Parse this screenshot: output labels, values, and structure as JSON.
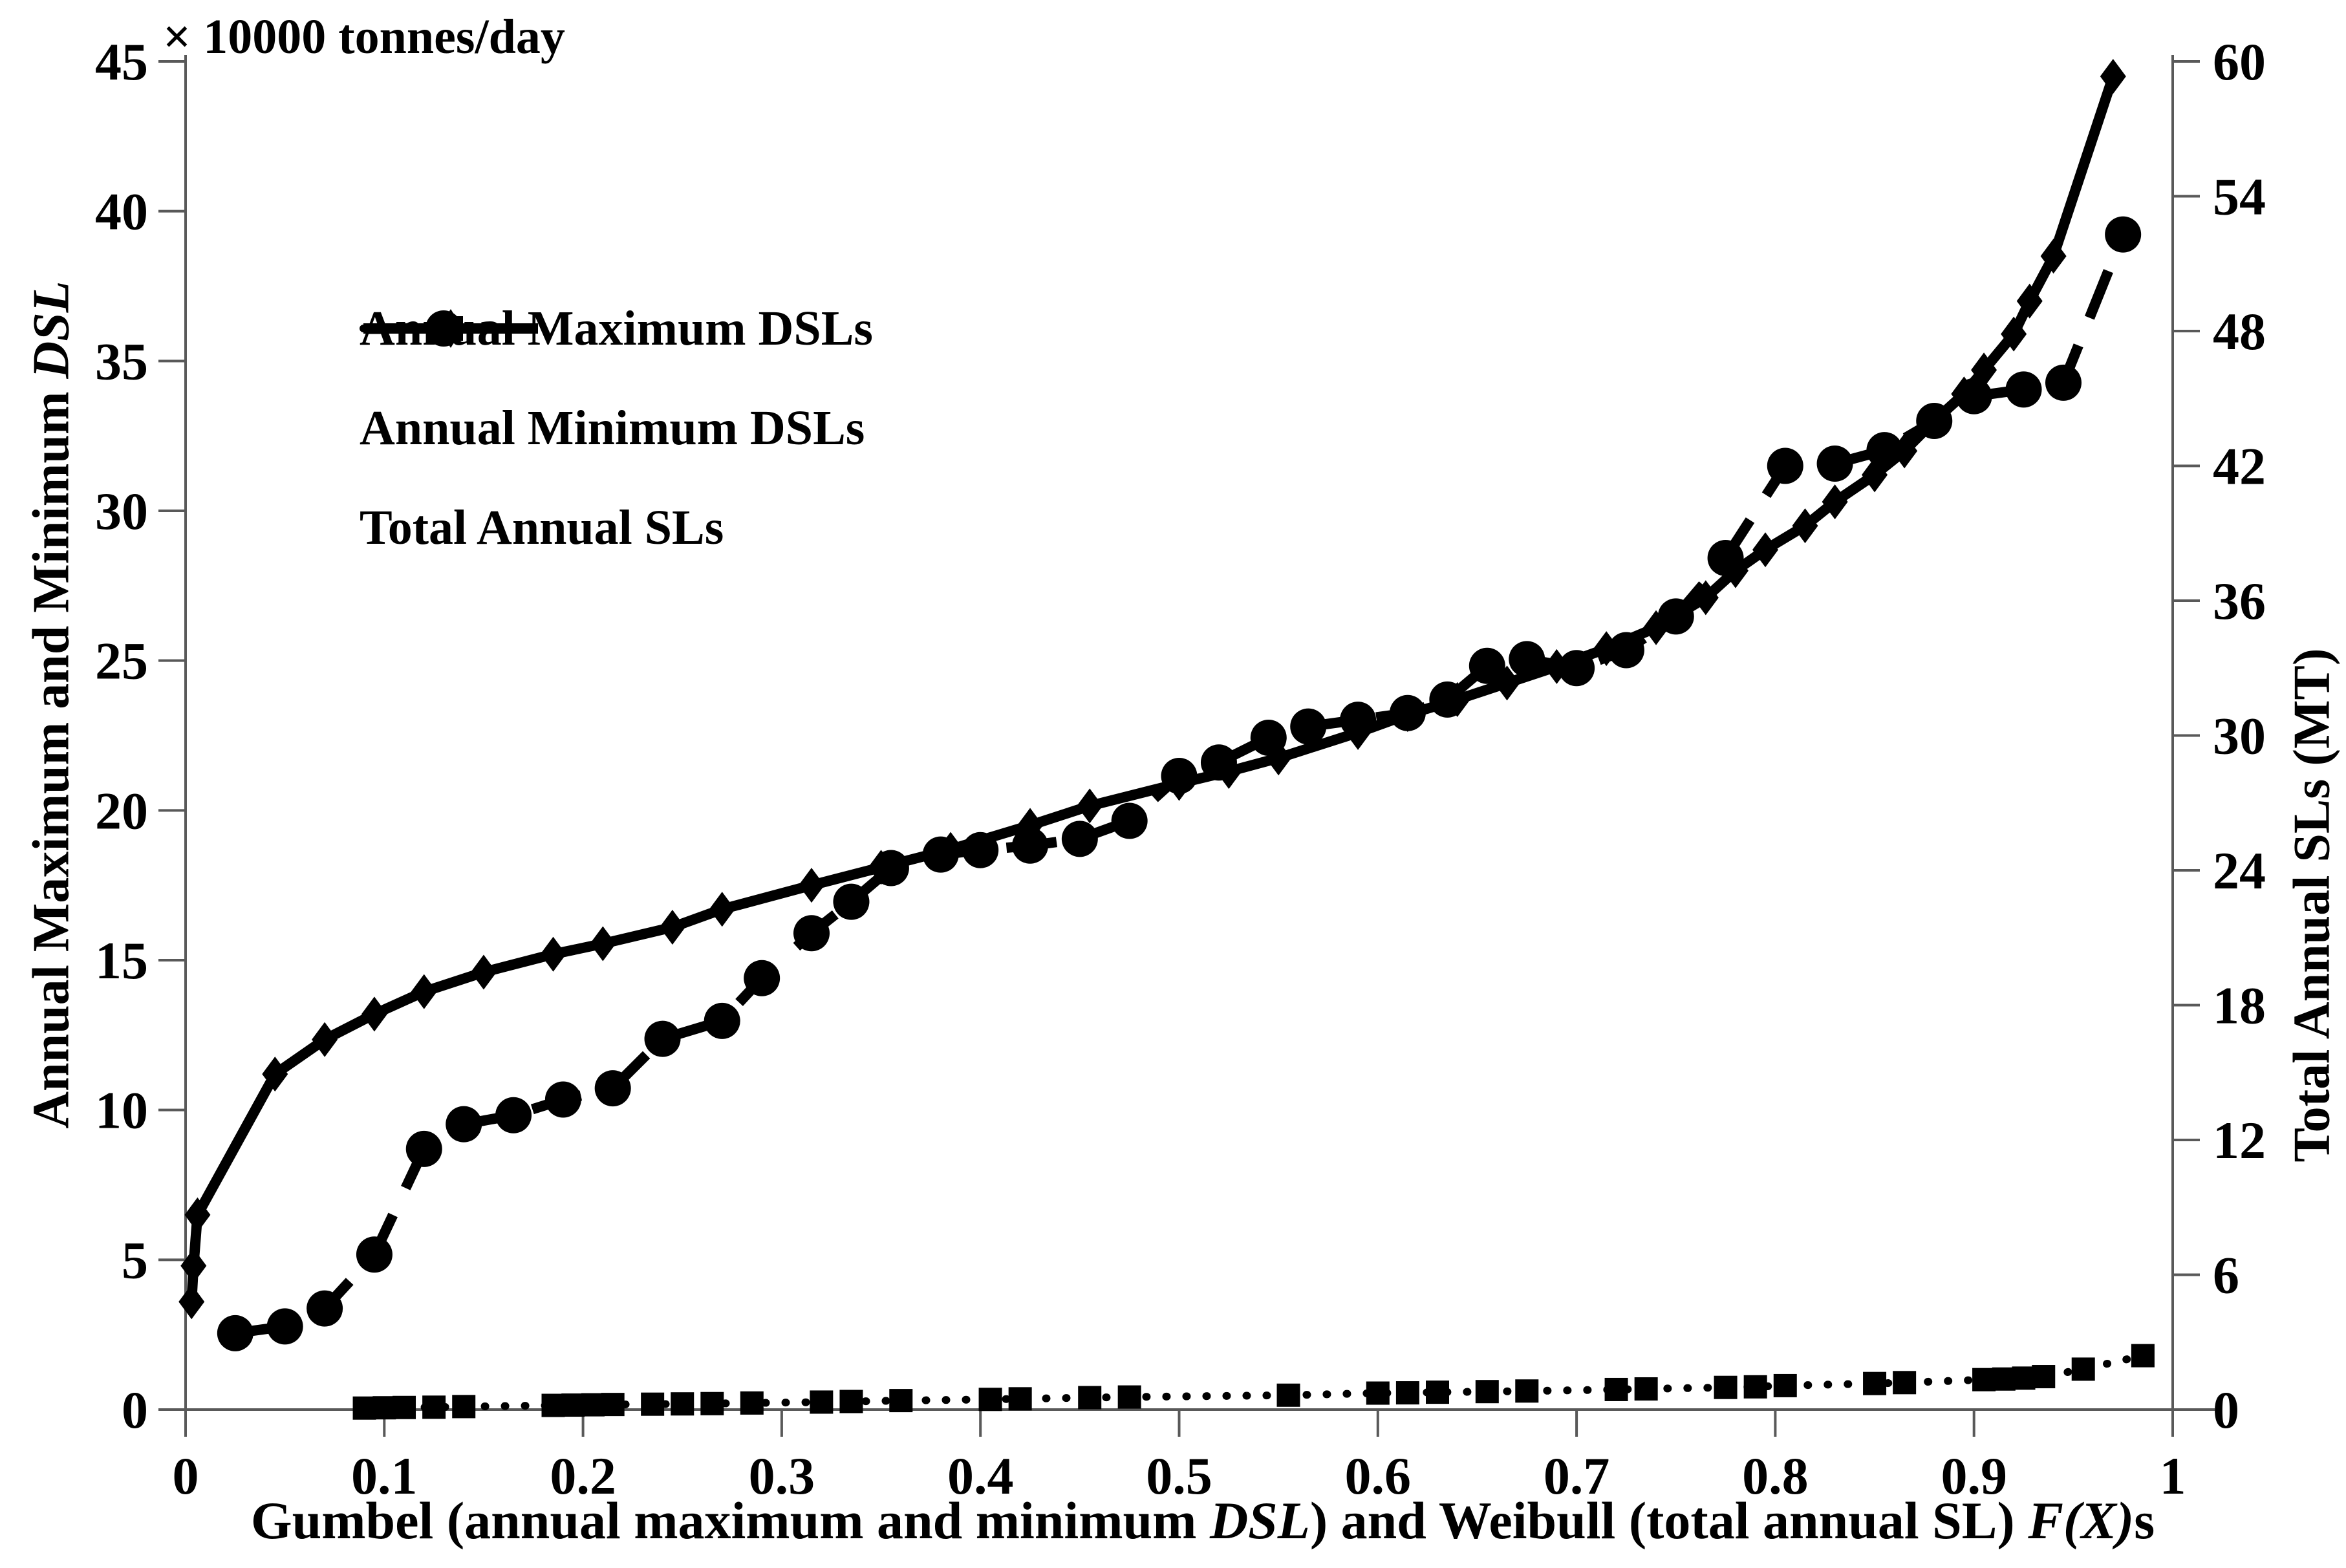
{
  "chart_data": {
    "type": "line",
    "title": "",
    "top_unit_label": "× 10000  tonnes/day",
    "x_axis": {
      "title_parts": [
        {
          "text": "Gumbel (annual maximum and minimum "
        },
        {
          "text": "DSL",
          "italic": true
        },
        {
          "text": ") and Weibull (total annual SL) "
        },
        {
          "text": "F(X)",
          "italic": true
        },
        {
          "text": "s"
        }
      ],
      "min": 0,
      "max": 1,
      "ticks": [
        0,
        0.1,
        0.2,
        0.3,
        0.4,
        0.5,
        0.6,
        0.7,
        0.8,
        0.9,
        1
      ],
      "tick_labels": [
        "0",
        "0.1",
        "0.2",
        "0.3",
        "0.4",
        "0.5",
        "0.6",
        "0.7",
        "0.8",
        "0.9",
        "1"
      ]
    },
    "y_left": {
      "title_parts": [
        {
          "text": "Annual Maximum and Minimum "
        },
        {
          "text": "DSL",
          "italic": true
        }
      ],
      "unit": "× 10000  tonnes/day",
      "min": 0,
      "max": 45,
      "ticks": [
        0,
        5,
        10,
        15,
        20,
        25,
        30,
        35,
        40,
        45
      ],
      "tick_labels": [
        "0",
        "5",
        "10",
        "15",
        "20",
        "25",
        "30",
        "35",
        "40",
        "45"
      ]
    },
    "y_right": {
      "label": "Total Annual SLs (MT)",
      "min": 0,
      "max": 60,
      "ticks": [
        0,
        6,
        12,
        18,
        24,
        30,
        36,
        42,
        48,
        54,
        60
      ],
      "tick_labels": [
        "0",
        "6",
        "12",
        "18",
        "24",
        "30",
        "36",
        "42",
        "48",
        "54",
        "60"
      ]
    },
    "grid": false,
    "legend_position": "upper-left-inside",
    "series": [
      {
        "name": "Annual Maximum DSLs",
        "axis": "left",
        "marker": "diamond",
        "line": "solid",
        "points": [
          [
            0.003,
            3.6
          ],
          [
            0.004,
            4.8
          ],
          [
            0.006,
            6.5
          ],
          [
            0.045,
            11.2
          ],
          [
            0.07,
            12.35
          ],
          [
            0.095,
            13.2
          ],
          [
            0.12,
            13.95
          ],
          [
            0.15,
            14.6
          ],
          [
            0.185,
            15.2
          ],
          [
            0.21,
            15.55
          ],
          [
            0.245,
            16.1
          ],
          [
            0.27,
            16.7
          ],
          [
            0.315,
            17.5
          ],
          [
            0.35,
            18.1
          ],
          [
            0.385,
            18.7
          ],
          [
            0.425,
            19.5
          ],
          [
            0.455,
            20.15
          ],
          [
            0.5,
            20.9
          ],
          [
            0.525,
            21.3
          ],
          [
            0.55,
            21.75
          ],
          [
            0.59,
            22.6
          ],
          [
            0.615,
            23.2
          ],
          [
            0.64,
            23.7
          ],
          [
            0.665,
            24.25
          ],
          [
            0.69,
            24.8
          ],
          [
            0.715,
            25.4
          ],
          [
            0.74,
            26.1
          ],
          [
            0.765,
            27.1
          ],
          [
            0.78,
            28.0
          ],
          [
            0.795,
            28.7
          ],
          [
            0.815,
            29.5
          ],
          [
            0.83,
            30.3
          ],
          [
            0.85,
            31.2
          ],
          [
            0.865,
            32.0
          ],
          [
            0.88,
            33.0
          ],
          [
            0.895,
            33.9
          ],
          [
            0.905,
            34.7
          ],
          [
            0.92,
            35.9
          ],
          [
            0.928,
            37.0
          ],
          [
            0.94,
            38.5
          ],
          [
            0.97,
            44.5
          ]
        ]
      },
      {
        "name": "Annual Minimum DSLs",
        "axis": "left",
        "marker": "square",
        "line": "dotted",
        "points": [
          [
            0.09,
            0.05
          ],
          [
            0.1,
            0.06
          ],
          [
            0.11,
            0.07
          ],
          [
            0.125,
            0.08
          ],
          [
            0.14,
            0.1
          ],
          [
            0.185,
            0.14
          ],
          [
            0.195,
            0.15
          ],
          [
            0.205,
            0.16
          ],
          [
            0.215,
            0.17
          ],
          [
            0.235,
            0.18
          ],
          [
            0.25,
            0.19
          ],
          [
            0.265,
            0.2
          ],
          [
            0.285,
            0.22
          ],
          [
            0.32,
            0.25
          ],
          [
            0.335,
            0.27
          ],
          [
            0.36,
            0.3
          ],
          [
            0.405,
            0.34
          ],
          [
            0.42,
            0.36
          ],
          [
            0.455,
            0.4
          ],
          [
            0.475,
            0.42
          ],
          [
            0.555,
            0.48
          ],
          [
            0.6,
            0.55
          ],
          [
            0.615,
            0.56
          ],
          [
            0.63,
            0.58
          ],
          [
            0.655,
            0.6
          ],
          [
            0.675,
            0.62
          ],
          [
            0.72,
            0.67
          ],
          [
            0.735,
            0.69
          ],
          [
            0.775,
            0.74
          ],
          [
            0.79,
            0.76
          ],
          [
            0.805,
            0.8
          ],
          [
            0.85,
            0.87
          ],
          [
            0.865,
            0.9
          ],
          [
            0.905,
            1.0
          ],
          [
            0.915,
            1.02
          ],
          [
            0.925,
            1.05
          ],
          [
            0.935,
            1.1
          ],
          [
            0.955,
            1.35
          ],
          [
            0.985,
            1.8
          ]
        ]
      },
      {
        "name": "Total Annual SLs",
        "axis": "right",
        "marker": "circle",
        "line": "dashed",
        "points": [
          [
            0.025,
            3.4
          ],
          [
            0.05,
            3.7
          ],
          [
            0.07,
            4.5
          ],
          [
            0.095,
            6.9
          ],
          [
            0.12,
            11.6
          ],
          [
            0.14,
            12.7
          ],
          [
            0.165,
            13.1
          ],
          [
            0.19,
            13.8
          ],
          [
            0.215,
            14.3
          ],
          [
            0.24,
            16.5
          ],
          [
            0.27,
            17.3
          ],
          [
            0.29,
            19.2
          ],
          [
            0.315,
            21.2
          ],
          [
            0.335,
            22.6
          ],
          [
            0.355,
            24.1
          ],
          [
            0.38,
            24.7
          ],
          [
            0.4,
            24.9
          ],
          [
            0.425,
            25.1
          ],
          [
            0.45,
            25.4
          ],
          [
            0.475,
            26.2
          ],
          [
            0.5,
            28.2
          ],
          [
            0.52,
            28.8
          ],
          [
            0.545,
            29.9
          ],
          [
            0.565,
            30.4
          ],
          [
            0.59,
            30.7
          ],
          [
            0.615,
            31.0
          ],
          [
            0.635,
            31.6
          ],
          [
            0.655,
            33.1
          ],
          [
            0.675,
            33.4
          ],
          [
            0.7,
            33.0
          ],
          [
            0.725,
            33.8
          ],
          [
            0.75,
            35.3
          ],
          [
            0.775,
            37.9
          ],
          [
            0.805,
            42.0
          ],
          [
            0.83,
            42.1
          ],
          [
            0.855,
            42.7
          ],
          [
            0.88,
            44.0
          ],
          [
            0.9,
            45.1
          ],
          [
            0.925,
            45.4
          ],
          [
            0.945,
            45.7
          ],
          [
            0.975,
            52.3
          ]
        ]
      }
    ]
  }
}
